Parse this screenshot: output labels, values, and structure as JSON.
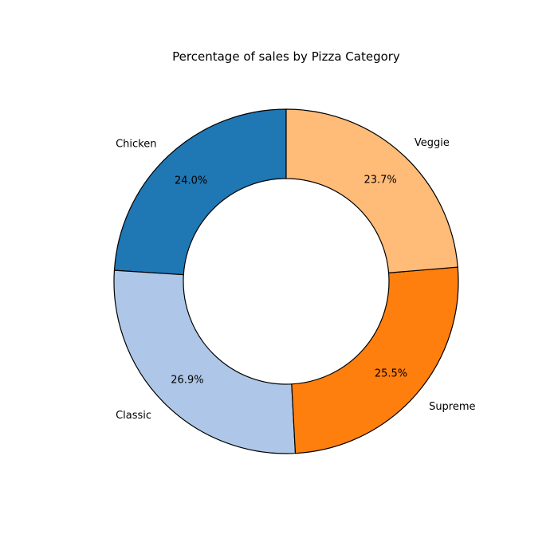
{
  "chart_data": {
    "type": "pie",
    "variant": "donut",
    "title": "Percentage of sales by Pizza Category",
    "categories": [
      "Chicken",
      "Classic",
      "Supreme",
      "Veggie"
    ],
    "values": [
      24.0,
      26.9,
      25.5,
      23.7
    ],
    "percent_labels": [
      "24.0%",
      "26.9%",
      "25.5%",
      "23.7%"
    ],
    "colors": [
      "#1f77b4",
      "#aec7e8",
      "#ff7f0e",
      "#ffbb78"
    ],
    "edge_color": "#000000",
    "start_angle_deg": 90,
    "direction": "counterclockwise",
    "legend": "none"
  }
}
